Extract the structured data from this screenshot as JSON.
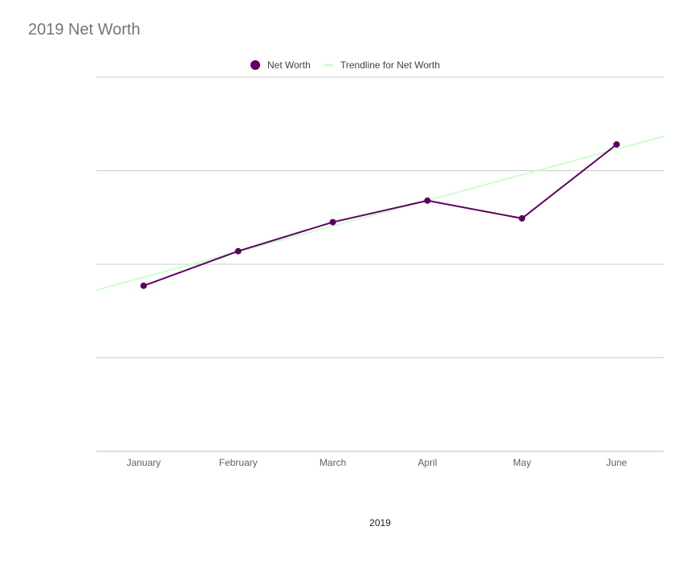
{
  "chart_data": {
    "type": "line",
    "title": "2019 Net Worth",
    "xlabel": "2019",
    "ylabel": "",
    "categories": [
      "January",
      "February",
      "March",
      "April",
      "May",
      "June"
    ],
    "series": [
      {
        "name": "Net Worth",
        "values": [
          1.77,
          2.14,
          2.45,
          2.68,
          2.49,
          3.28
        ]
      }
    ],
    "trendline": {
      "name": "Trendline for Net Worth",
      "type": "linear",
      "values": [
        1.86,
        2.13,
        2.41,
        2.68,
        2.96,
        3.23
      ]
    },
    "ylim": [
      0,
      4
    ],
    "y_gridlines": [
      0,
      1,
      2,
      3,
      4
    ],
    "y_tick_labels_shown": false,
    "grid": true,
    "legend_position": "top-center",
    "colors": {
      "series": "#5b0060",
      "trendline": "#ccffcc",
      "gridline": "#cccccc",
      "baseline": "#bdbdbd",
      "title": "#757575"
    }
  }
}
